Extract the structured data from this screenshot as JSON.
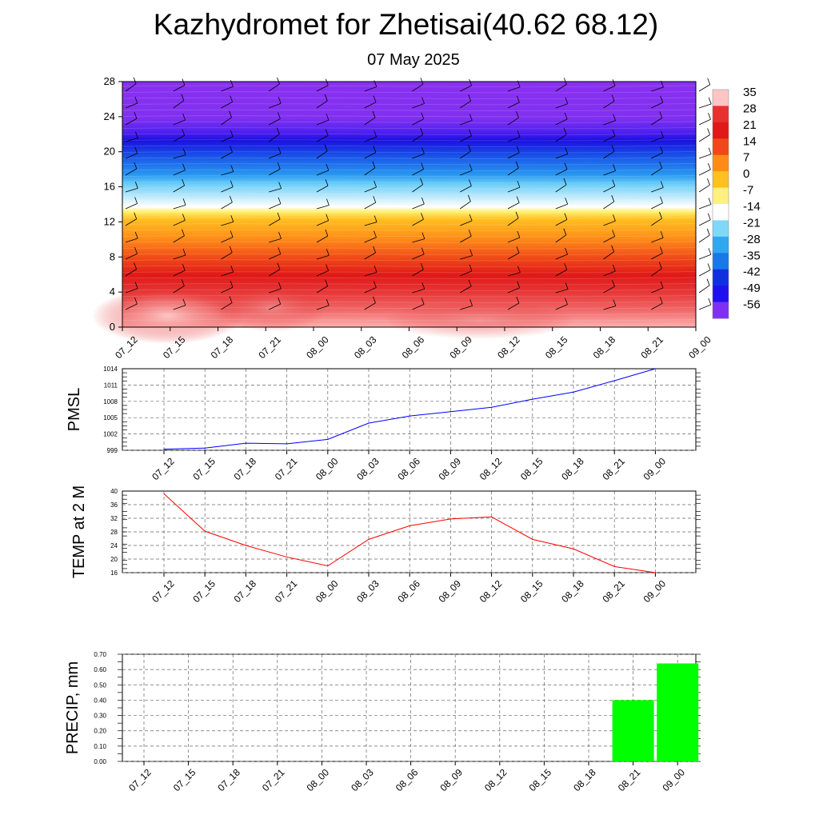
{
  "title": "Kazhydromet for Zhetisai(40.62 68.12)",
  "subtitle": "07 May 2025",
  "time_labels": [
    "07_12",
    "07_15",
    "07_18",
    "07_21",
    "08_00",
    "08_03",
    "08_06",
    "08_09",
    "08_12",
    "08_15",
    "08_18",
    "08_21",
    "09_00"
  ],
  "chart_data": [
    {
      "type": "heatmap",
      "title": "",
      "ylabel": "",
      "x": [
        "07_12",
        "07_15",
        "07_18",
        "07_21",
        "08_00",
        "08_03",
        "08_06",
        "08_09",
        "08_12",
        "08_15",
        "08_18",
        "08_21",
        "09_00"
      ],
      "y_ticks": [
        0,
        4,
        8,
        12,
        16,
        20,
        24,
        28
      ],
      "ylim": [
        0,
        28
      ],
      "colorbar_ticks": [
        35,
        28,
        21,
        14,
        7,
        0,
        -7,
        -14,
        -21,
        -28,
        -35,
        -42,
        -49,
        -56
      ],
      "colorbar_colors": [
        "#ffc4c4",
        "#e83030",
        "#e01818",
        "#f04818",
        "#ff8c18",
        "#ffc020",
        "#fff080",
        "#ffffff",
        "#80d8f8",
        "#30a8f0",
        "#1878e8",
        "#1030e0",
        "#2010f0",
        "#8030f0"
      ],
      "description_levels": {
        "levels": [
          0,
          2,
          4,
          6,
          8,
          10,
          12,
          13,
          14,
          16,
          18,
          20,
          22,
          24,
          28
        ],
        "values": [
          34,
          28,
          24,
          20,
          16,
          10,
          2,
          -12,
          -20,
          -34,
          -48,
          -58,
          -62,
          -70,
          -72
        ]
      },
      "wind_barbs": true
    },
    {
      "type": "line",
      "ylabel": "PMSL",
      "x": [
        "07_12",
        "07_15",
        "07_18",
        "07_21",
        "08_00",
        "08_03",
        "08_06",
        "08_09",
        "08_12",
        "08_15",
        "08_18",
        "08_21",
        "09_00"
      ],
      "y_ticks": [
        999,
        1002,
        1005,
        1008,
        1011,
        1014
      ],
      "ylim": [
        999,
        1014
      ],
      "grid": true,
      "series": [
        {
          "color": "#0000ff",
          "values": [
            999.2,
            999.4,
            1000.3,
            1000.2,
            1001.0,
            1004.0,
            1005.3,
            1006.1,
            1006.9,
            1008.4,
            1009.7,
            1011.8,
            1014.0
          ]
        }
      ]
    },
    {
      "type": "line",
      "ylabel": "TEMP at 2 M",
      "x": [
        "07_12",
        "07_15",
        "07_18",
        "07_21",
        "08_00",
        "08_03",
        "08_06",
        "08_09",
        "08_12",
        "08_15",
        "08_18",
        "08_21",
        "09_00"
      ],
      "y_ticks": [
        16,
        20,
        24,
        28,
        32,
        36,
        40
      ],
      "ylim": [
        16,
        40
      ],
      "grid": true,
      "series": [
        {
          "color": "#ff0000",
          "values": [
            39.2,
            28.2,
            24.0,
            20.6,
            18.0,
            25.8,
            29.8,
            31.8,
            32.4,
            25.8,
            23.0,
            17.8,
            16.0
          ]
        }
      ]
    },
    {
      "type": "bar",
      "ylabel": "PRECIP, mm",
      "categories": [
        "07_12",
        "07_15",
        "07_18",
        "07_21",
        "08_00",
        "08_03",
        "08_06",
        "08_09",
        "08_12",
        "08_15",
        "08_18",
        "08_21",
        "09_00"
      ],
      "y_ticks": [
        "0.00",
        "0.10",
        "0.20",
        "0.30",
        "0.40",
        "0.50",
        "0.60",
        "0.70"
      ],
      "ylim": [
        0,
        0.7
      ],
      "grid": true,
      "bar_color": "#00ff00",
      "values": [
        0,
        0,
        0,
        0,
        0,
        0,
        0,
        0,
        0,
        0,
        0,
        0.4,
        0.64
      ]
    }
  ]
}
